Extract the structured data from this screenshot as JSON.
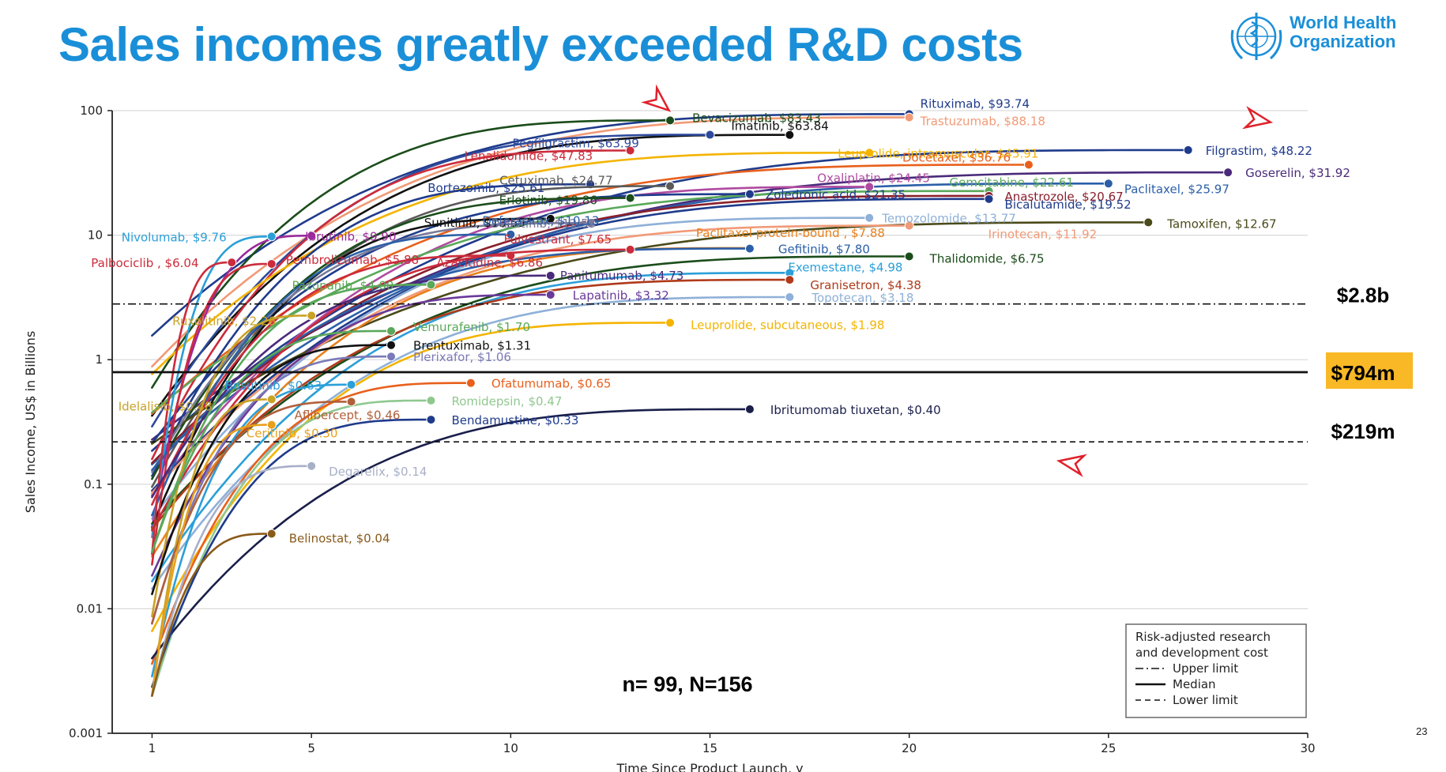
{
  "slide": {
    "title": "Sales incomes greatly exceeded R&D costs",
    "logo_name_line1": "World Health",
    "logo_name_line2": "Organization",
    "page_number": "23",
    "logo_icon": "who-emblem-icon",
    "arrow_icon": "red-arrowhead-icon",
    "title_color": "#1a8fd8"
  },
  "chart_data": {
    "type": "line",
    "xlabel": "Time Since Product Launch, y",
    "ylabel": "Sales Income, US$ in Billions",
    "x_scale": "linear",
    "y_scale": "log",
    "xlim": [
      0,
      30
    ],
    "ylim": [
      0.001,
      100
    ],
    "x_ticks": [
      1,
      5,
      10,
      15,
      20,
      25,
      30
    ],
    "y_ticks": [
      {
        "value": 0.001,
        "label": "0.001"
      },
      {
        "value": 0.01,
        "label": "0.01"
      },
      {
        "value": 0.1,
        "label": "0.1"
      },
      {
        "value": 1,
        "label": "1"
      },
      {
        "value": 10,
        "label": "10"
      },
      {
        "value": 100,
        "label": "100"
      }
    ],
    "grid": "horizontal",
    "sample_note": "n= 99, N=156",
    "reference_lines": [
      {
        "name": "Upper limit",
        "value": 2.8,
        "label": "$2.8b",
        "style": "dash-dot"
      },
      {
        "name": "Median",
        "value": 0.794,
        "label": "$794m",
        "style": "solid",
        "highlight": "#f9b825"
      },
      {
        "name": "Lower limit",
        "value": 0.219,
        "label": "$219m",
        "style": "dashed"
      }
    ],
    "legend": {
      "title_line1": "Risk-adjusted research",
      "title_line2": "and development cost",
      "position": "bottom-right",
      "items": [
        "Upper limit",
        "Median",
        "Lower limit"
      ]
    },
    "series": [
      {
        "name": "Rituximab",
        "label": "Rituximab, $93.74",
        "years": 20,
        "value": 93.74,
        "color": "#1f3b8c"
      },
      {
        "name": "Trastuzumab",
        "label": "Trastuzumab, $88.18",
        "years": 20,
        "value": 88.18,
        "color": "#f19a77"
      },
      {
        "name": "Bevacizumab",
        "label": "Bevacizumab, $83.43",
        "years": 14,
        "value": 83.43,
        "color": "#1b4d1b"
      },
      {
        "name": "Imatinib",
        "label": "Imatinib, $63.84",
        "years": 17,
        "value": 63.84,
        "color": "#111111"
      },
      {
        "name": "Pegfilgrastim",
        "label": "Pegfilgrastim, $63.99",
        "years": 15,
        "value": 63.99,
        "color": "#2d4a9c"
      },
      {
        "name": "Filgrastim",
        "label": "Filgrastim, $48.22",
        "years": 27,
        "value": 48.22,
        "color": "#1f3b8c"
      },
      {
        "name": "Lenalidomide",
        "label": "Lenalidomide, $47.83",
        "years": 13,
        "value": 47.83,
        "color": "#cc2b3b"
      },
      {
        "name": "Leuprolide, intramuscular",
        "label": "Leuprolide, intramuscular, $45.91",
        "years": 19,
        "value": 45.91,
        "color": "#f4b400"
      },
      {
        "name": "Docetaxel",
        "label": "Docetaxel, $36.76",
        "years": 23,
        "value": 36.76,
        "color": "#e8601c"
      },
      {
        "name": "Goserelin",
        "label": "Goserelin, $31.92",
        "years": 28,
        "value": 31.92,
        "color": "#4a2a7a"
      },
      {
        "name": "Paclitaxel",
        "label": "Paclitaxel, $25.97",
        "years": 25,
        "value": 25.97,
        "color": "#2b5fa8"
      },
      {
        "name": "Bortezomib",
        "label": "Bortezomib, $25.61",
        "years": 12,
        "value": 25.61,
        "color": "#1f3b8c"
      },
      {
        "name": "Cetuximab",
        "label": "Cetuximab, $24.77",
        "years": 14,
        "value": 24.77,
        "color": "#5a5a5a"
      },
      {
        "name": "Oxaliplatin",
        "label": "Oxaliplatin, $24.45",
        "years": 19,
        "value": 24.45,
        "color": "#b04aa0"
      },
      {
        "name": "Gemcitabine",
        "label": "Gemcitabine, $22.61",
        "years": 22,
        "value": 22.61,
        "color": "#5aa85a"
      },
      {
        "name": "Zoledronic acid",
        "label": "Zoledronic acid, $21.35",
        "years": 16,
        "value": 21.35,
        "color": "#1f3b8c"
      },
      {
        "name": "Anastrozole",
        "label": "Anastrozole, $20.67",
        "years": 22,
        "value": 20.67,
        "color": "#8a1f2b"
      },
      {
        "name": "Erlotinib",
        "label": "Erlotinib, $19.86",
        "years": 13,
        "value": 19.86,
        "color": "#1b4d1b"
      },
      {
        "name": "Bicalutamide",
        "label": "Bicalutamide, $19.52",
        "years": 22,
        "value": 19.52,
        "color": "#1f3b8c"
      },
      {
        "name": "Temozolomide",
        "label": "Temozolomide, $13.77",
        "years": 19,
        "value": 13.77,
        "color": "#8fb0d8"
      },
      {
        "name": "Sunitinib",
        "label": "Sunitinib, $13.55",
        "years": 11,
        "value": 13.55,
        "color": "#111111"
      },
      {
        "name": "Tamoxifen",
        "label": "Tamoxifen, $12.67",
        "years": 26,
        "value": 12.67,
        "color": "#4a4a1a"
      },
      {
        "name": "Dasatinib",
        "label": "Dasatinib, $12.53",
        "years": 12,
        "value": 12.53,
        "color": "#7a7a9a"
      },
      {
        "name": "Irinotecan",
        "label": "Irinotecan, $11.92",
        "years": 20,
        "value": 11.92,
        "color": "#f19a77"
      },
      {
        "name": "Deferasirox",
        "label": "Deferasirox, $10.13",
        "years": 10,
        "value": 10.13,
        "color": "#2b5fa8"
      },
      {
        "name": "Ibrutinib",
        "label": "Ibrutinib, $9.90",
        "years": 5,
        "value": 9.9,
        "color": "#9b2a9b"
      },
      {
        "name": "Nivolumab",
        "label": "Nivolumab, $9.76",
        "years": 4,
        "value": 9.76,
        "color": "#2b9fd8"
      },
      {
        "name": "Paclitaxel protein-bound",
        "label": "Paclitaxel protein-bound , $7.88",
        "years": 16,
        "value": 7.88,
        "color": "#e8801c"
      },
      {
        "name": "Gefitinib",
        "label": "Gefitinib, $7.80",
        "years": 16,
        "value": 7.8,
        "color": "#2b5fa8"
      },
      {
        "name": "Azacitidine",
        "label": "Azacitidine, $6.86",
        "years": 10,
        "value": 6.86,
        "color": "#cc2b3b"
      },
      {
        "name": "Thalidomide",
        "label": "Thalidomide, $6.75",
        "years": 20,
        "value": 6.75,
        "color": "#1b4d1b"
      },
      {
        "name": "Fulvestrant",
        "label": "Fulvestrant, $7.65",
        "years": 13,
        "value": 7.65,
        "color": "#cc2b3b"
      },
      {
        "name": "Palbociclib",
        "label": "Palbociclib , $6.04",
        "years": 3,
        "value": 6.04,
        "color": "#cc2b3b"
      },
      {
        "name": "Pembrolizumab",
        "label": "Pembrolizumab, $5.88",
        "years": 4,
        "value": 5.88,
        "color": "#cc2b3b"
      },
      {
        "name": "Exemestane",
        "label": "Exemestane, $4.98",
        "years": 17,
        "value": 4.98,
        "color": "#2b9fd8"
      },
      {
        "name": "Panitumumab",
        "label": "Panitumumab, $4.73",
        "years": 11,
        "value": 4.73,
        "color": "#4a2a7a"
      },
      {
        "name": "Granisetron",
        "label": "Granisetron, $4.38",
        "years": 17,
        "value": 4.38,
        "color": "#b03a1a"
      },
      {
        "name": "Pazopanib",
        "label": "Pazopanib, $4.00",
        "years": 8,
        "value": 4.0,
        "color": "#5aa85a"
      },
      {
        "name": "Lapatinib",
        "label": "Lapatinib, $3.32",
        "years": 11,
        "value": 3.32,
        "color": "#6a3a9a"
      },
      {
        "name": "Topotecan",
        "label": "Topotecan, $3.18",
        "years": 17,
        "value": 3.18,
        "color": "#8fb0d8"
      },
      {
        "name": "Ruxolitinib",
        "label": "Ruxolitinib, $2.26",
        "years": 5,
        "value": 2.26,
        "color": "#c9a227"
      },
      {
        "name": "Leuprolide, subcutaneous",
        "label": "Leuprolide, subcutaneous, $1.98",
        "years": 14,
        "value": 1.98,
        "color": "#f4b400"
      },
      {
        "name": "Vemurafenib",
        "label": "Vemurafenib, $1.70",
        "years": 7,
        "value": 1.7,
        "color": "#5aa85a"
      },
      {
        "name": "Brentuximab",
        "label": "Brentuximab, $1.31",
        "years": 7,
        "value": 1.31,
        "color": "#111111"
      },
      {
        "name": "Plerixafor",
        "label": "Plerixafor, $1.06",
        "years": 7,
        "value": 1.06,
        "color": "#7a7ab8"
      },
      {
        "name": "Ofatumumab",
        "label": "Ofatumumab, $0.65",
        "years": 9,
        "value": 0.65,
        "color": "#e8601c"
      },
      {
        "name": "Bosutinib",
        "label": "Bosutinib, $0.63",
        "years": 6,
        "value": 0.63,
        "color": "#2b9fd8"
      },
      {
        "name": "Idelalisib",
        "label": "Idelalisib, $0.48",
        "years": 4,
        "value": 0.48,
        "color": "#c9a227"
      },
      {
        "name": "Romidepsin",
        "label": "Romidepsin, $0.47",
        "years": 8,
        "value": 0.47,
        "color": "#8fc88f"
      },
      {
        "name": "Aflibercept",
        "label": "Aflibercept, $0.46",
        "years": 6,
        "value": 0.46,
        "color": "#b0603a"
      },
      {
        "name": "Ibritumomab tiuxetan",
        "label": "Ibritumomab tiuxetan, $0.40",
        "years": 16,
        "value": 0.4,
        "color": "#1a1f4a"
      },
      {
        "name": "Bendamustine",
        "label": "Bendamustine, $0.33",
        "years": 8,
        "value": 0.33,
        "color": "#1f3b8c"
      },
      {
        "name": "Ceritinib",
        "label": "Ceritinib, $0.30",
        "years": 4,
        "value": 0.3,
        "color": "#e8a01c"
      },
      {
        "name": "Degarelix",
        "label": "Degarelix, $0.14",
        "years": 5,
        "value": 0.14,
        "color": "#a8b0c8"
      },
      {
        "name": "Belinostat",
        "label": "Belinostat, $0.04",
        "years": 4,
        "value": 0.04,
        "color": "#8a5a1a"
      }
    ]
  }
}
